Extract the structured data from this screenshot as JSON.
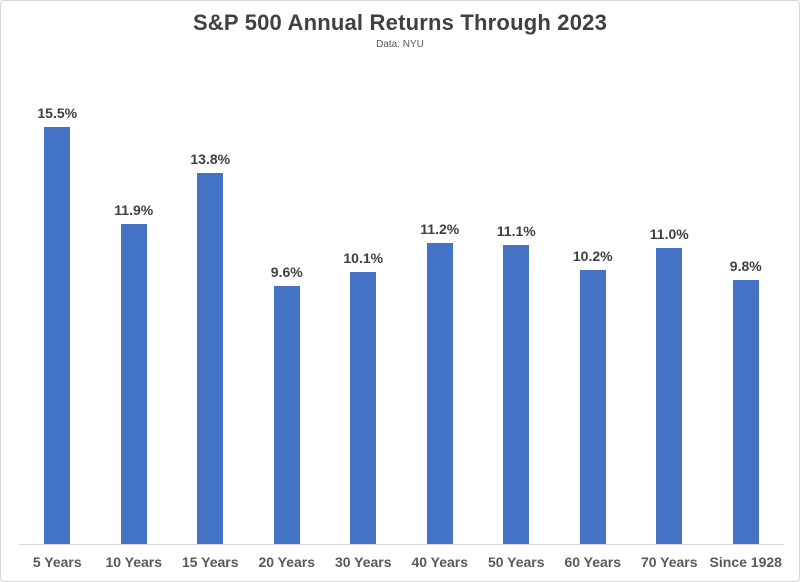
{
  "header": {
    "title": "S&P 500 Annual Returns Through 2023",
    "subtitle": "Data: NYU"
  },
  "chart_data": {
    "type": "bar",
    "title": "S&P 500 Annual Returns Through 2023",
    "subtitle": "Data: NYU",
    "categories": [
      "5 Years",
      "10 Years",
      "15 Years",
      "20 Years",
      "30 Years",
      "40 Years",
      "50 Years",
      "60 Years",
      "70 Years",
      "Since 1928"
    ],
    "values": [
      15.5,
      11.9,
      13.8,
      9.6,
      10.1,
      11.2,
      11.1,
      10.2,
      11.0,
      9.8
    ],
    "value_labels": [
      "15.5%",
      "11.9%",
      "13.8%",
      "9.6%",
      "10.1%",
      "11.2%",
      "11.1%",
      "10.2%",
      "11.0%",
      "9.8%"
    ],
    "xlabel": "",
    "ylabel": "",
    "ylim": [
      0,
      17
    ],
    "grid": false,
    "legend": false,
    "bar_color": "#4472C4",
    "value_label_color": "#3f3f3f",
    "axis_label_color": "#595959",
    "axis_line_color": "#d9d9d9"
  }
}
